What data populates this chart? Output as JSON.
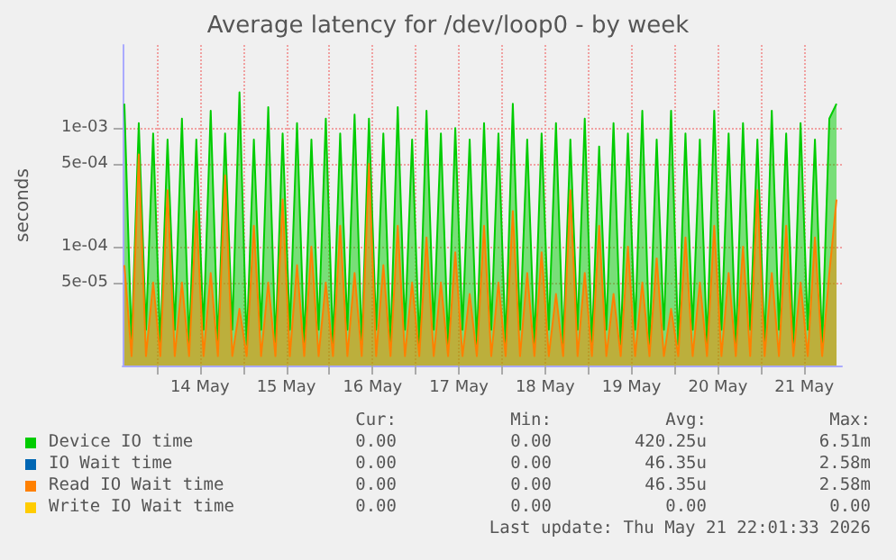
{
  "chart_data": {
    "type": "area",
    "title": "Average latency for /dev/loop0 - by week",
    "ylabel": "seconds",
    "x": [
      "2026-05-13T15:00",
      "2026-05-13T17:00",
      "2026-05-13T19:00",
      "2026-05-13T21:00",
      "2026-05-13T23:00",
      "2026-05-14T01:00",
      "2026-05-14T03:00",
      "2026-05-14T05:00",
      "2026-05-14T07:00",
      "2026-05-14T09:00",
      "2026-05-14T11:00",
      "2026-05-14T13:00",
      "2026-05-14T15:00",
      "2026-05-14T17:00",
      "2026-05-14T19:00",
      "2026-05-14T21:00",
      "2026-05-14T23:00",
      "2026-05-15T01:00",
      "2026-05-15T03:00",
      "2026-05-15T05:00",
      "2026-05-15T07:00",
      "2026-05-15T09:00",
      "2026-05-15T11:00",
      "2026-05-15T13:00",
      "2026-05-15T15:00",
      "2026-05-15T17:00",
      "2026-05-15T19:00",
      "2026-05-15T21:00",
      "2026-05-15T23:00",
      "2026-05-16T01:00",
      "2026-05-16T03:00",
      "2026-05-16T05:00",
      "2026-05-16T07:00",
      "2026-05-16T09:00",
      "2026-05-16T11:00",
      "2026-05-16T13:00",
      "2026-05-16T15:00",
      "2026-05-16T17:00",
      "2026-05-16T19:00",
      "2026-05-16T21:00",
      "2026-05-16T23:00",
      "2026-05-17T01:00",
      "2026-05-17T03:00",
      "2026-05-17T05:00",
      "2026-05-17T07:00",
      "2026-05-17T09:00",
      "2026-05-17T11:00",
      "2026-05-17T13:00",
      "2026-05-17T15:00",
      "2026-05-17T17:00",
      "2026-05-17T19:00",
      "2026-05-17T21:00",
      "2026-05-17T23:00",
      "2026-05-18T01:00",
      "2026-05-18T03:00",
      "2026-05-18T05:00",
      "2026-05-18T07:00",
      "2026-05-18T09:00",
      "2026-05-18T11:00",
      "2026-05-18T13:00",
      "2026-05-18T15:00",
      "2026-05-18T17:00",
      "2026-05-18T19:00",
      "2026-05-18T21:00",
      "2026-05-18T23:00",
      "2026-05-19T01:00",
      "2026-05-19T03:00",
      "2026-05-19T05:00",
      "2026-05-19T07:00",
      "2026-05-19T09:00",
      "2026-05-19T11:00",
      "2026-05-19T13:00",
      "2026-05-19T15:00",
      "2026-05-19T17:00",
      "2026-05-19T19:00",
      "2026-05-19T21:00",
      "2026-05-19T23:00",
      "2026-05-20T01:00",
      "2026-05-20T03:00",
      "2026-05-20T05:00",
      "2026-05-20T07:00",
      "2026-05-20T09:00",
      "2026-05-20T11:00",
      "2026-05-20T13:00",
      "2026-05-20T15:00",
      "2026-05-20T17:00",
      "2026-05-20T19:00",
      "2026-05-20T21:00",
      "2026-05-20T23:00",
      "2026-05-21T01:00",
      "2026-05-21T03:00",
      "2026-05-21T05:00",
      "2026-05-21T07:00",
      "2026-05-21T09:00",
      "2026-05-21T11:00",
      "2026-05-21T13:00",
      "2026-05-21T15:00",
      "2026-05-21T17:00",
      "2026-05-21T19:00",
      "2026-05-21T21:00"
    ],
    "series": [
      {
        "name": "Device IO time",
        "color": "#00cc00",
        "values": [
          0.0016,
          1.5e-05,
          0.0011,
          2e-05,
          0.0009,
          1.5e-05,
          0.0008,
          2e-05,
          0.0012,
          1.5e-05,
          0.0008,
          2e-05,
          0.0014,
          1.5e-05,
          0.0009,
          2e-05,
          0.002,
          1.5e-05,
          0.0008,
          2e-05,
          0.0015,
          1.5e-05,
          0.0009,
          2e-05,
          0.0011,
          1.5e-05,
          0.0008,
          2e-05,
          0.0012,
          1.5e-05,
          0.0009,
          2e-05,
          0.0013,
          1.5e-05,
          0.0012,
          2e-05,
          0.0009,
          1.5e-05,
          0.0015,
          2e-05,
          0.0008,
          1.5e-05,
          0.0014,
          2e-05,
          0.0009,
          1.5e-05,
          0.001,
          2e-05,
          0.0008,
          1.5e-05,
          0.0011,
          2e-05,
          0.0009,
          1.5e-05,
          0.0016,
          2e-05,
          0.0008,
          1.5e-05,
          0.0009,
          2e-05,
          0.0011,
          1.5e-05,
          0.0008,
          2e-05,
          0.0012,
          1.5e-05,
          0.0007,
          2e-05,
          0.0011,
          1.5e-05,
          0.0009,
          2e-05,
          0.0014,
          1.5e-05,
          0.0008,
          2e-05,
          0.0014,
          1.5e-05,
          0.0009,
          2e-05,
          0.0008,
          1.5e-05,
          0.0014,
          2e-05,
          0.0009,
          1.5e-05,
          0.0011,
          2e-05,
          0.0008,
          1.5e-05,
          0.0014,
          2e-05,
          0.0009,
          1.5e-05,
          0.0011,
          2e-05,
          0.0008,
          1.5e-05,
          0.0012,
          0.0016
        ]
      },
      {
        "name": "IO Wait time",
        "color": "#0066b3",
        "values": [
          null,
          null,
          null,
          null,
          null,
          null,
          null,
          null,
          null,
          null,
          null,
          null,
          null,
          null,
          null,
          null,
          null,
          null,
          null,
          null,
          null,
          null,
          null,
          null,
          null,
          null,
          null,
          null,
          null,
          null,
          null,
          null,
          null,
          null,
          null,
          null,
          null,
          null,
          null,
          null,
          null,
          null,
          null,
          null,
          null,
          null,
          null,
          null,
          null,
          null,
          null,
          null,
          null,
          null,
          null,
          null,
          null,
          null,
          null,
          null,
          null,
          null,
          null,
          null,
          null,
          null,
          null,
          null,
          null,
          null,
          null,
          null,
          null,
          null,
          null,
          null,
          null,
          null,
          null,
          null,
          null,
          null,
          null,
          null,
          null,
          null,
          null,
          null,
          null,
          null,
          null,
          null,
          null,
          null,
          null,
          null,
          null,
          null,
          null,
          null
        ]
      },
      {
        "name": "Read IO Wait time",
        "color": "#ff8000",
        "values": [
          7e-05,
          1.2e-05,
          0.0006,
          1.2e-05,
          5e-05,
          1.2e-05,
          0.0003,
          1.2e-05,
          5e-05,
          1.2e-05,
          0.0002,
          1.2e-05,
          6e-05,
          1.2e-05,
          0.0004,
          1.2e-05,
          3e-05,
          1.2e-05,
          0.00015,
          1.2e-05,
          5e-05,
          1.2e-05,
          0.00025,
          1.2e-05,
          7e-05,
          1.2e-05,
          0.0001,
          1.2e-05,
          5e-05,
          1.2e-05,
          0.00015,
          1.2e-05,
          6e-05,
          1.2e-05,
          0.0005,
          1.2e-05,
          7e-05,
          1.2e-05,
          0.00015,
          1.2e-05,
          5e-05,
          1.2e-05,
          0.00012,
          1.2e-05,
          5e-05,
          1.2e-05,
          9e-05,
          1.2e-05,
          4e-05,
          1.2e-05,
          0.00015,
          1.2e-05,
          5e-05,
          1.2e-05,
          0.0002,
          1.2e-05,
          6e-05,
          1.2e-05,
          9e-05,
          1.2e-05,
          4e-05,
          1.2e-05,
          0.0003,
          1.2e-05,
          6e-05,
          1.2e-05,
          0.00015,
          1.2e-05,
          4e-05,
          1.2e-05,
          0.0001,
          1.2e-05,
          5e-05,
          1.2e-05,
          8e-05,
          1.2e-05,
          3e-05,
          1.2e-05,
          0.00012,
          1.2e-05,
          5e-05,
          1.2e-05,
          0.00015,
          1.2e-05,
          6e-05,
          1.2e-05,
          0.0001,
          1.2e-05,
          0.0003,
          1.2e-05,
          6e-05,
          1.2e-05,
          0.00015,
          1.2e-05,
          5e-05,
          1.2e-05,
          0.00012,
          1.2e-05,
          6e-05,
          0.00025
        ]
      },
      {
        "name": "Write IO Wait time",
        "color": "#ffcc00",
        "values": [
          null,
          null,
          null,
          null,
          null,
          null,
          null,
          null,
          null,
          null,
          null,
          null,
          null,
          null,
          null,
          null,
          null,
          null,
          null,
          null,
          null,
          null,
          null,
          null,
          null,
          null,
          null,
          null,
          null,
          null,
          null,
          null,
          null,
          null,
          null,
          null,
          null,
          null,
          null,
          null,
          null,
          null,
          null,
          null,
          null,
          null,
          null,
          null,
          null,
          null,
          null,
          null,
          null,
          null,
          null,
          null,
          null,
          null,
          null,
          null,
          null,
          null,
          null,
          null,
          null,
          null,
          null,
          null,
          null,
          null,
          null,
          null,
          null,
          null,
          null,
          null,
          null,
          null,
          null,
          null,
          null,
          null,
          null,
          null,
          null,
          null,
          null,
          null,
          null,
          null,
          null,
          null,
          null,
          null,
          null,
          null,
          null,
          null,
          null,
          null
        ]
      }
    ],
    "log": "y",
    "ylim": [
      1e-05,
      0.005
    ],
    "yticks": [
      {
        "value": 5e-05,
        "label": "5e-05"
      },
      {
        "value": 0.0001,
        "label": "1e-04"
      },
      {
        "value": 0.0005,
        "label": "5e-04"
      },
      {
        "value": 0.001,
        "label": "1e-03"
      }
    ],
    "xlim": [
      "2026-05-13T14:30",
      "2026-05-21T22:30"
    ],
    "xticks": [
      {
        "value": "2026-05-14T00:00",
        "label": null
      },
      {
        "value": "2026-05-14T12:00",
        "label": "14 May"
      },
      {
        "value": "2026-05-15T00:00",
        "label": null
      },
      {
        "value": "2026-05-15T12:00",
        "label": "15 May"
      },
      {
        "value": "2026-05-16T00:00",
        "label": null
      },
      {
        "value": "2026-05-16T12:00",
        "label": "16 May"
      },
      {
        "value": "2026-05-17T00:00",
        "label": null
      },
      {
        "value": "2026-05-17T12:00",
        "label": "17 May"
      },
      {
        "value": "2026-05-18T00:00",
        "label": null
      },
      {
        "value": "2026-05-18T12:00",
        "label": "18 May"
      },
      {
        "value": "2026-05-19T00:00",
        "label": null
      },
      {
        "value": "2026-05-19T12:00",
        "label": "19 May"
      },
      {
        "value": "2026-05-20T00:00",
        "label": null
      },
      {
        "value": "2026-05-20T12:00",
        "label": "20 May"
      },
      {
        "value": "2026-05-21T00:00",
        "label": null
      },
      {
        "value": "2026-05-21T12:00",
        "label": "21 May"
      }
    ],
    "grid": true,
    "legend": "bottom",
    "annotations": [
      "Cur:",
      "Min:",
      "Avg:",
      "Max:",
      "0.00",
      "0.00",
      "420.25u",
      "6.51m",
      "0.00",
      "0.00",
      "46.35u",
      "2.58m",
      "0.00",
      "0.00",
      "46.35u",
      "2.58m",
      "0.00",
      "0.00",
      "0.00",
      "0.00",
      "Last update: Thu May 21 22:01:33 2026"
    ]
  }
}
